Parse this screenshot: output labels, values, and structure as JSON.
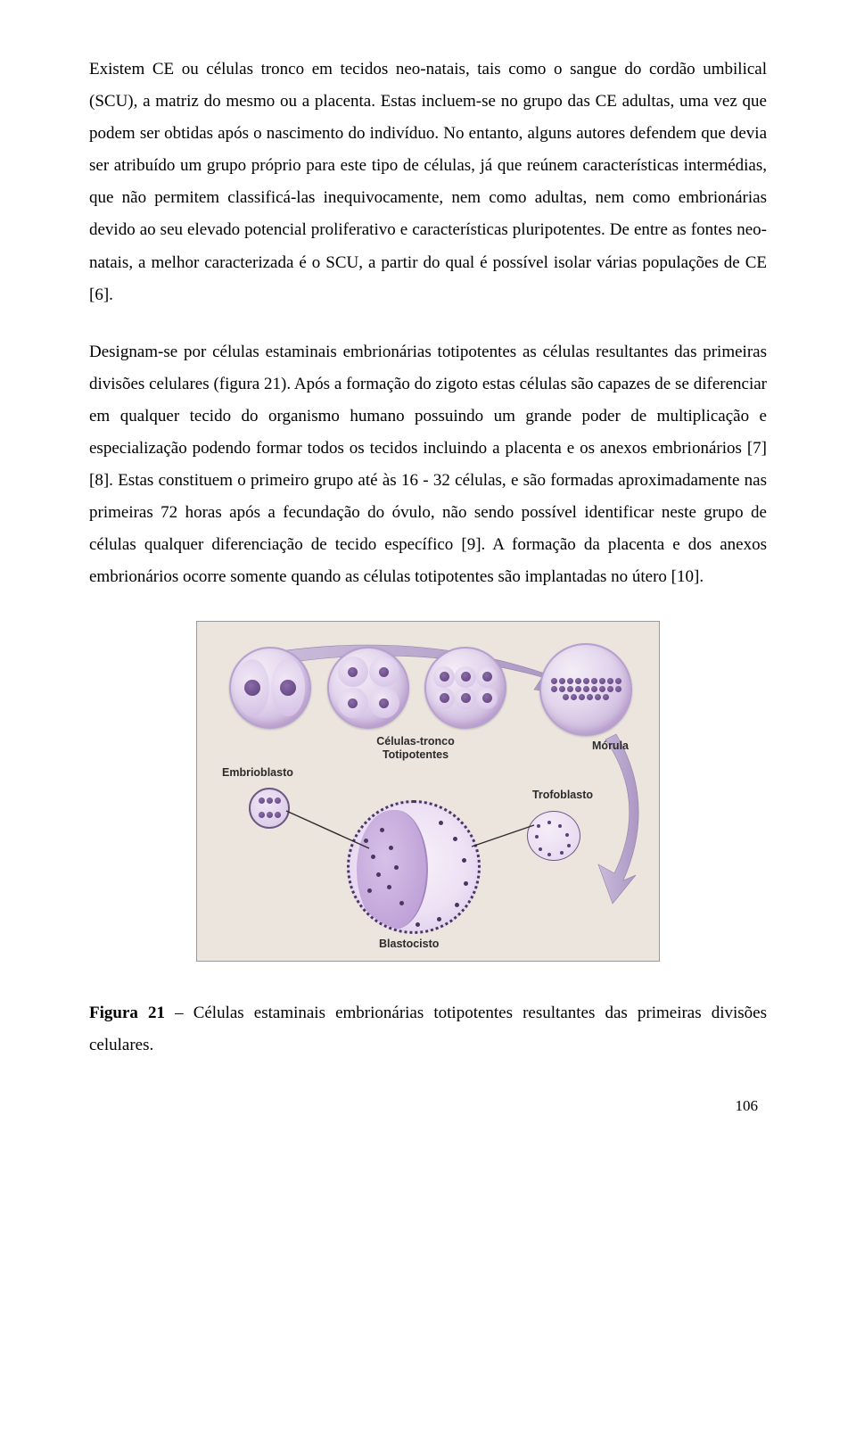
{
  "paragraphs": {
    "p1": "Existem CE ou células tronco em tecidos neo-natais, tais como o sangue do cordão umbilical (SCU), a matriz do mesmo ou a placenta. Estas incluem-se no grupo das CE adultas, uma vez que podem ser obtidas após o nascimento do indivíduo. No entanto, alguns autores defendem que devia ser atribuído um grupo próprio para este tipo de células, já que reúnem características intermédias, que não permitem classificá-las inequivocamente, nem como adultas, nem como embrionárias devido ao seu elevado potencial proliferativo e características pluripotentes. De entre as fontes neo-natais, a melhor caracterizada é o SCU, a partir do qual é possível isolar várias populações de CE [6].",
    "p2": "Designam-se por células estaminais embrionárias totipotentes as células resultantes das primeiras divisões celulares (figura 21). Após a formação do zigoto estas células são capazes de se diferenciar em qualquer tecido do organismo humano possuindo um grande poder de multiplicação e especialização podendo formar todos os tecidos incluindo a placenta e os anexos embrionários [7] [8]. Estas constituem o primeiro grupo até às 16 - 32 células, e são formadas aproximadamente nas primeiras 72 horas após a fecundação do óvulo, não sendo possível identificar neste grupo de células qualquer diferenciação de tecido específico [9]. A formação da placenta e dos anexos embrionários ocorre somente quando as células totipotentes são implantadas no útero [10]."
  },
  "figure": {
    "labels": {
      "celulas_tronco": "Células-tronco\nTotipotentes",
      "morula": "Mórula",
      "embrioblasto": "Embrioblasto",
      "trofoblasto": "Trofoblasto",
      "blastocisto": "Blastocisto"
    },
    "colors": {
      "panel_bg": "#ebe5de",
      "panel_border": "#9a9a9a",
      "cell_light": "#f4eef7",
      "cell_mid": "#e2d4ec",
      "cell_dark": "#c9b3da",
      "cell_edge": "#b59ac9",
      "nucleus_light": "#8b6ca8",
      "nucleus_dark": "#5a3d7a",
      "arrow_fill": "#b3a0cc",
      "arrow_stroke": "#8a78a2",
      "label_color": "#2b2b2b"
    }
  },
  "caption": {
    "prefix": "Figura 21",
    "sep": " – ",
    "text": "Células estaminais embrionárias totipotentes resultantes das primeiras divisões celulares."
  },
  "page_number": "106"
}
